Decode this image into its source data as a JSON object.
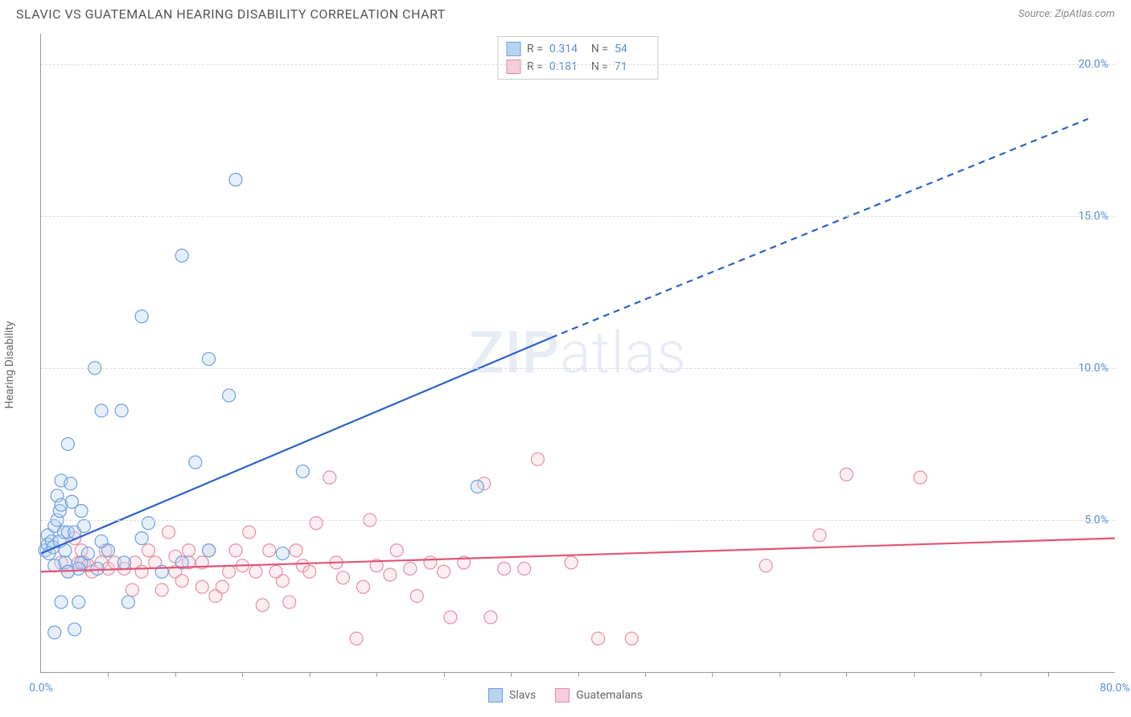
{
  "title": "SLAVIC VS GUATEMALAN HEARING DISABILITY CORRELATION CHART",
  "source": "Source: ZipAtlas.com",
  "watermark": {
    "part1": "ZIP",
    "part2": "atlas"
  },
  "ylabel": "Hearing Disability",
  "chart": {
    "type": "scatter",
    "xlim": [
      0,
      80
    ],
    "ylim": [
      0,
      21
    ],
    "x_origin_label": "0.0%",
    "x_max_label": "80.0%",
    "x_tick_step": 5,
    "y_gridlines": [
      5,
      10,
      15,
      20
    ],
    "y_tick_labels": [
      "5.0%",
      "10.0%",
      "15.0%",
      "20.0%"
    ],
    "background_color": "#ffffff",
    "grid_color": "#dddddd",
    "axis_color": "#999999",
    "tick_label_color": "#5b8fd6",
    "marker_radius": 8,
    "marker_stroke_width": 1.2,
    "marker_fill_opacity": 0.35,
    "trend_line_width": 2.2,
    "series": {
      "slavs": {
        "label": "Slavs",
        "swatch_fill": "#b9d3f0",
        "swatch_border": "#6da0e0",
        "marker_fill": "#b9d3f0",
        "marker_stroke": "#6da0e0",
        "trend_color": "#2b62c9",
        "R": "0.314",
        "N": "54",
        "trend": {
          "x1": 0,
          "y1": 3.9,
          "x2": 38,
          "y2": 11.0,
          "dash_to_x": 78,
          "dash_to_y": 18.2
        },
        "points": [
          [
            0.3,
            4.0
          ],
          [
            0.5,
            4.5
          ],
          [
            0.5,
            4.2
          ],
          [
            0.6,
            3.9
          ],
          [
            0.8,
            4.3
          ],
          [
            0.9,
            4.1
          ],
          [
            1.0,
            3.5
          ],
          [
            1.0,
            4.8
          ],
          [
            1.0,
            1.3
          ],
          [
            1.2,
            5.0
          ],
          [
            1.2,
            5.8
          ],
          [
            1.4,
            4.3
          ],
          [
            1.4,
            5.3
          ],
          [
            1.5,
            5.5
          ],
          [
            1.5,
            6.3
          ],
          [
            1.7,
            4.6
          ],
          [
            1.8,
            3.6
          ],
          [
            1.5,
            2.3
          ],
          [
            2.0,
            4.6
          ],
          [
            2.0,
            7.5
          ],
          [
            2.2,
            6.2
          ],
          [
            2.3,
            5.6
          ],
          [
            2.5,
            4.6
          ],
          [
            2.5,
            1.4
          ],
          [
            2.8,
            2.3
          ],
          [
            3.0,
            3.6
          ],
          [
            3.0,
            5.3
          ],
          [
            3.2,
            4.8
          ],
          [
            4.0,
            10.0
          ],
          [
            4.5,
            8.6
          ],
          [
            5.0,
            4.0
          ],
          [
            6.0,
            8.6
          ],
          [
            6.2,
            3.6
          ],
          [
            6.5,
            2.3
          ],
          [
            7.5,
            4.4
          ],
          [
            7.5,
            11.7
          ],
          [
            8.0,
            4.9
          ],
          [
            9.0,
            3.3
          ],
          [
            10.5,
            13.7
          ],
          [
            10.5,
            3.6
          ],
          [
            11.5,
            6.9
          ],
          [
            12.5,
            10.3
          ],
          [
            12.5,
            4.0
          ],
          [
            14.0,
            9.1
          ],
          [
            14.5,
            16.2
          ],
          [
            18.0,
            3.9
          ],
          [
            19.5,
            6.6
          ],
          [
            32.5,
            6.1
          ],
          [
            2.8,
            3.4
          ],
          [
            3.5,
            3.9
          ],
          [
            4.5,
            4.3
          ],
          [
            4.2,
            3.4
          ],
          [
            2.0,
            3.3
          ],
          [
            1.8,
            4.0
          ]
        ]
      },
      "guatemalans": {
        "label": "Guatemalans",
        "swatch_fill": "#f6cdd8",
        "swatch_border": "#e38fa7",
        "marker_fill": "#f6cdd8",
        "marker_stroke": "#e38fa7",
        "trend_color": "#e15577",
        "R": "0.181",
        "N": "71",
        "trend": {
          "x1": 0,
          "y1": 3.3,
          "x2": 80,
          "y2": 4.4
        },
        "points": [
          [
            1.5,
            3.6
          ],
          [
            2.0,
            3.3
          ],
          [
            2.8,
            3.6
          ],
          [
            2.5,
            4.4
          ],
          [
            3.0,
            4.0
          ],
          [
            3.2,
            3.6
          ],
          [
            3.5,
            3.5
          ],
          [
            3.8,
            3.3
          ],
          [
            4.5,
            3.6
          ],
          [
            4.8,
            4.0
          ],
          [
            5.0,
            3.4
          ],
          [
            5.5,
            3.6
          ],
          [
            6.2,
            3.4
          ],
          [
            6.8,
            2.7
          ],
          [
            7.0,
            3.6
          ],
          [
            7.5,
            3.3
          ],
          [
            8.0,
            4.0
          ],
          [
            8.5,
            3.6
          ],
          [
            9.0,
            2.7
          ],
          [
            9.5,
            4.6
          ],
          [
            10.0,
            3.3
          ],
          [
            10.5,
            3.0
          ],
          [
            11.0,
            4.0
          ],
          [
            11.0,
            3.6
          ],
          [
            12.0,
            2.8
          ],
          [
            12.5,
            4.0
          ],
          [
            13.0,
            2.5
          ],
          [
            13.5,
            2.8
          ],
          [
            14.0,
            3.3
          ],
          [
            14.5,
            4.0
          ],
          [
            15.5,
            4.6
          ],
          [
            16.0,
            3.3
          ],
          [
            16.5,
            2.2
          ],
          [
            17.0,
            4.0
          ],
          [
            18.0,
            3.0
          ],
          [
            18.5,
            2.3
          ],
          [
            19.0,
            4.0
          ],
          [
            19.5,
            3.5
          ],
          [
            20.0,
            3.3
          ],
          [
            20.5,
            4.9
          ],
          [
            21.5,
            6.4
          ],
          [
            22.0,
            3.6
          ],
          [
            22.5,
            3.1
          ],
          [
            23.5,
            1.1
          ],
          [
            24.0,
            2.8
          ],
          [
            24.5,
            5.0
          ],
          [
            25.0,
            3.5
          ],
          [
            26.0,
            3.2
          ],
          [
            26.5,
            4.0
          ],
          [
            27.5,
            3.4
          ],
          [
            28.0,
            2.5
          ],
          [
            29.0,
            3.6
          ],
          [
            30.0,
            3.3
          ],
          [
            30.5,
            1.8
          ],
          [
            31.5,
            3.6
          ],
          [
            33.0,
            6.2
          ],
          [
            33.5,
            1.8
          ],
          [
            34.5,
            3.4
          ],
          [
            36.0,
            3.4
          ],
          [
            37.0,
            7.0
          ],
          [
            39.5,
            3.6
          ],
          [
            41.5,
            1.1
          ],
          [
            44.0,
            1.1
          ],
          [
            54.0,
            3.5
          ],
          [
            58.0,
            4.5
          ],
          [
            60.0,
            6.5
          ],
          [
            65.5,
            6.4
          ],
          [
            10.0,
            3.8
          ],
          [
            12.0,
            3.6
          ],
          [
            15.0,
            3.5
          ],
          [
            17.5,
            3.3
          ]
        ]
      }
    }
  },
  "legend_box": {
    "r_label": "R =",
    "n_label": "N ="
  },
  "bottom_legend": {
    "series1": "Slavs",
    "series2": "Guatemalans"
  }
}
